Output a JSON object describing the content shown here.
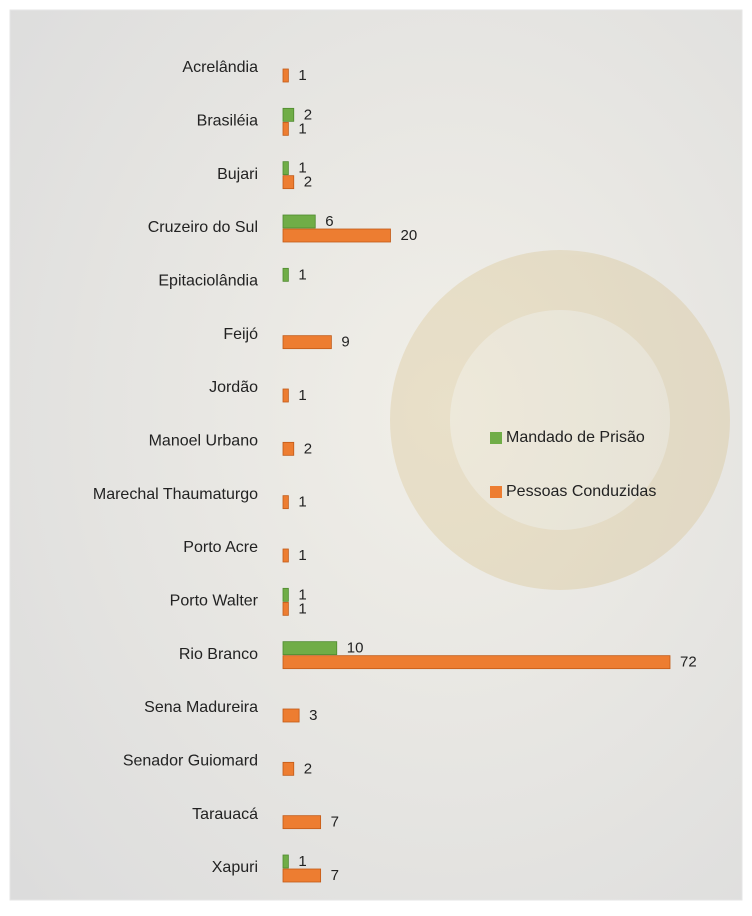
{
  "chart_data": {
    "type": "bar",
    "orientation": "horizontal",
    "categories": [
      "Acrelândia",
      "Brasiléia",
      "Bujari",
      "Cruzeiro do Sul",
      "Epitaciolândia",
      "Feijó",
      "Jordão",
      "Manoel Urbano",
      "Marechal Thaumaturgo",
      "Porto Acre",
      "Porto Walter",
      "Rio Branco",
      "Sena Madureira",
      "Senador Guiomard",
      "Tarauacá",
      "Xapuri"
    ],
    "series": [
      {
        "name": "Mandado de Prisão",
        "color": "#70ad47",
        "values": [
          null,
          2,
          1,
          6,
          1,
          null,
          null,
          null,
          null,
          null,
          1,
          10,
          null,
          null,
          null,
          1
        ]
      },
      {
        "name": "Pessoas Conduzidas",
        "color": "#ed7d31",
        "values": [
          1,
          1,
          2,
          20,
          null,
          9,
          1,
          2,
          1,
          1,
          1,
          72,
          3,
          2,
          7,
          7
        ]
      }
    ],
    "legend": "right"
  }
}
